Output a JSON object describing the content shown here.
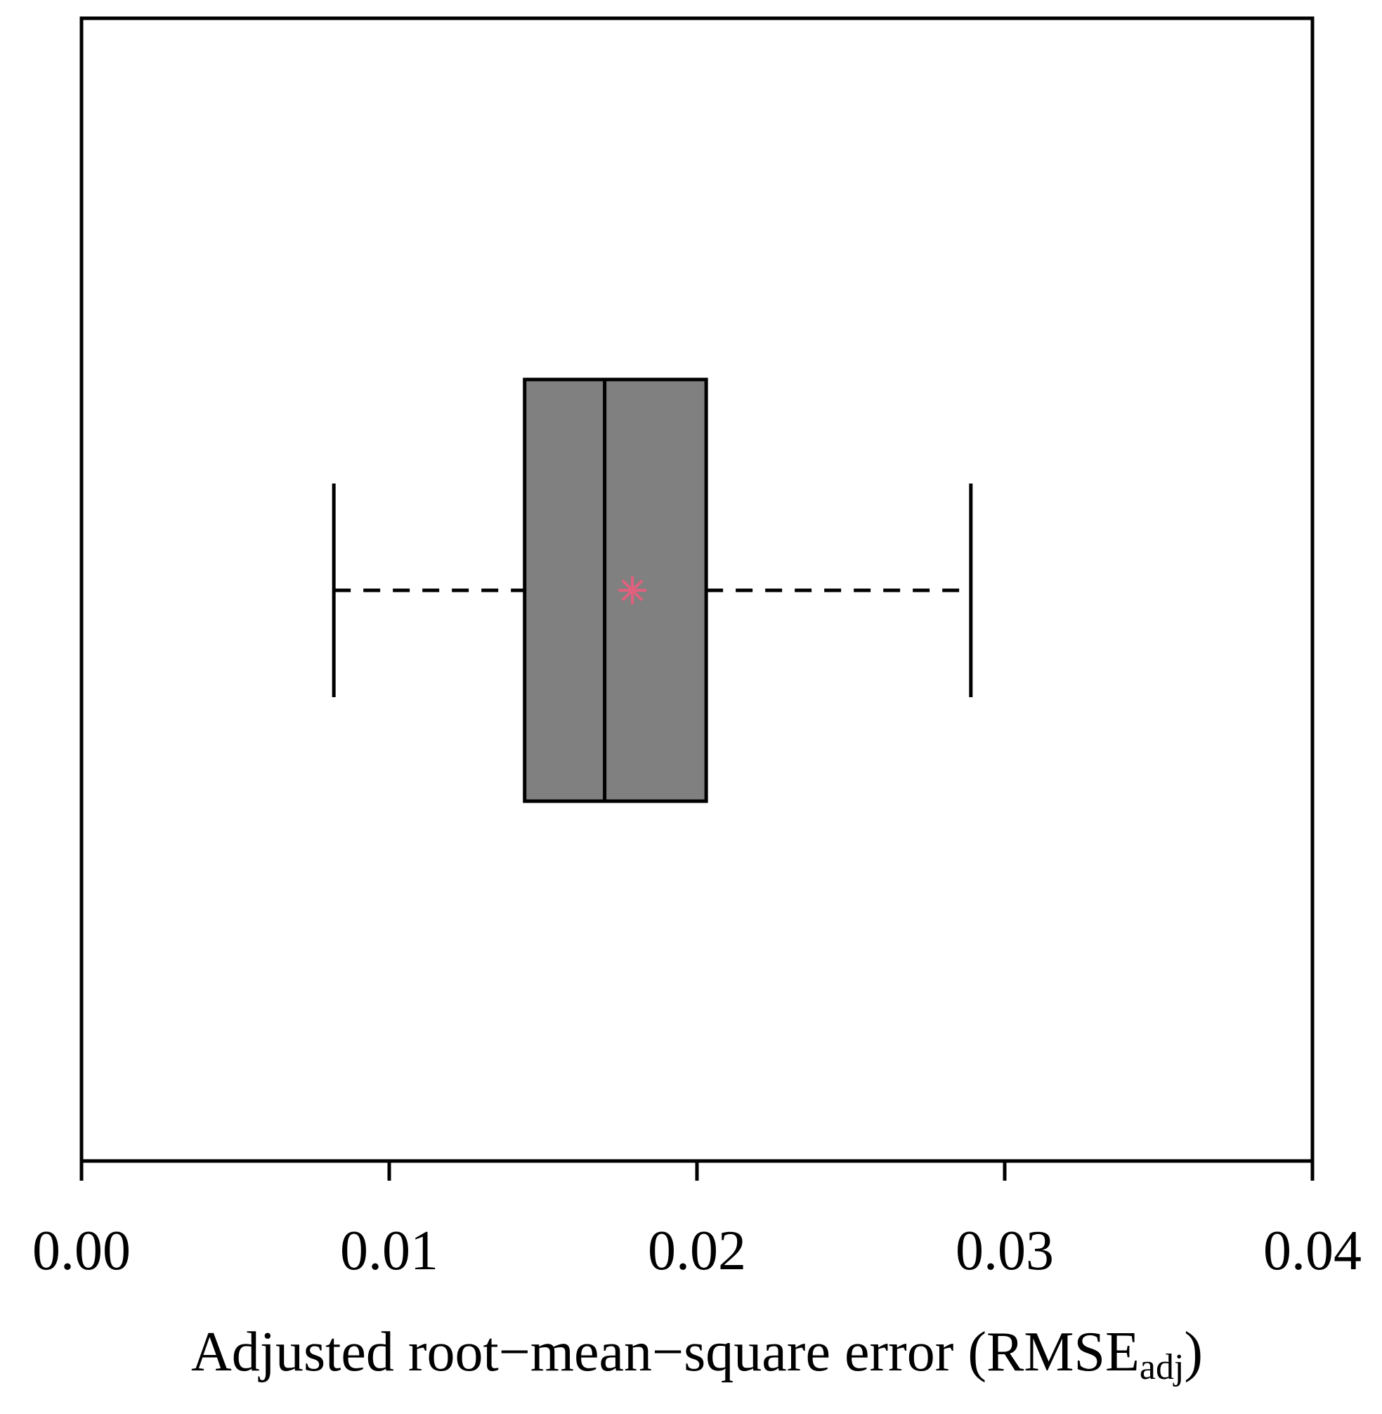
{
  "chart_data": {
    "type": "box",
    "orientation": "horizontal",
    "boxes": [
      {
        "whislo": 0.0082,
        "q1": 0.0144,
        "med": 0.017,
        "q3": 0.0203,
        "whishi": 0.0289,
        "mean": 0.0179
      }
    ],
    "box_color": "#808080",
    "mean_color": "#e0607e",
    "xlim": [
      0,
      0.04
    ],
    "xticks": [
      {
        "value": 0,
        "label": "0.00"
      },
      {
        "value": 0.01,
        "label": "0.01"
      },
      {
        "value": 0.02,
        "label": "0.02"
      },
      {
        "value": 0.03,
        "label": "0.03"
      },
      {
        "value": 0.04,
        "label": "0.04"
      }
    ],
    "xlabel": {
      "text": "Adjusted root−mean−square error (RMSE",
      "subscript": "adj",
      "suffix": ")"
    }
  }
}
